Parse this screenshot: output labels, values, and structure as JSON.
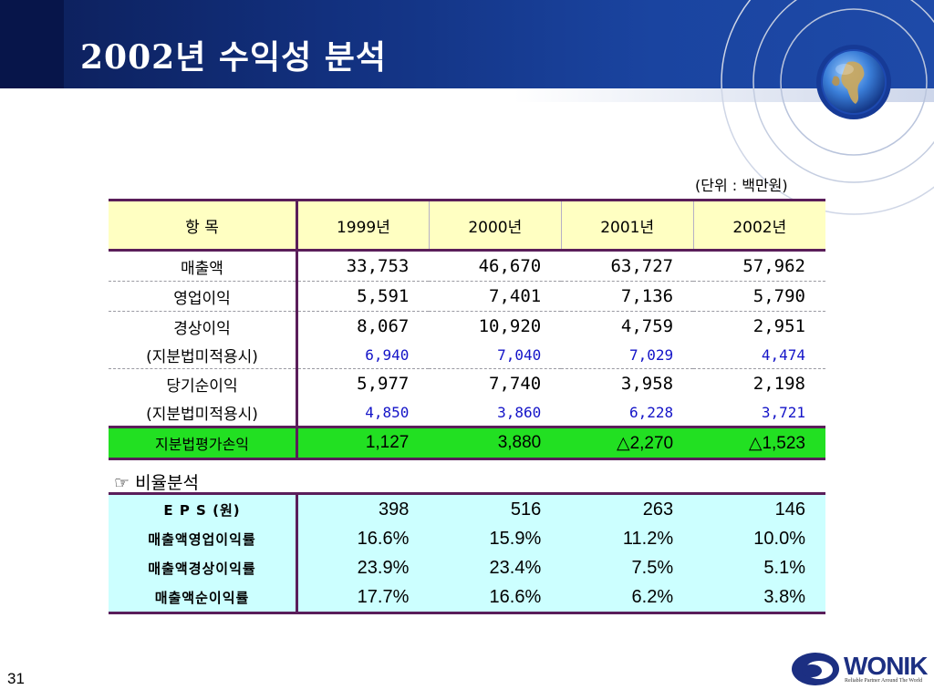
{
  "slide": {
    "title": "2002년 수익성 분석",
    "unit": "(단위 : 백만원)",
    "page_number": "31"
  },
  "table": {
    "header": [
      "항      목",
      "1999년",
      "2000년",
      "2001년",
      "2002년"
    ],
    "rows": [
      {
        "label": "매출액",
        "values": [
          "33,753",
          "46,670",
          "63,727",
          "57,962"
        ]
      },
      {
        "label": "영업이익",
        "values": [
          "5,591",
          "7,401",
          "7,136",
          "5,790"
        ]
      },
      {
        "label": "경상이익",
        "values": [
          "8,067",
          "10,920",
          "4,759",
          "2,951"
        ]
      },
      {
        "label": "(지분법미적용시)",
        "values": [
          "6,940",
          "7,040",
          "7,029",
          "4,474"
        ]
      },
      {
        "label": "당기순이익",
        "values": [
          "5,977",
          "7,740",
          "3,958",
          "2,198"
        ]
      },
      {
        "label": "(지분법미적용시)",
        "values": [
          "4,850",
          "3,860",
          "6,228",
          "3,721"
        ]
      },
      {
        "label": "지분법평가손익",
        "values": [
          "1,127",
          "3,880",
          "△2,270",
          "△1,523"
        ]
      }
    ]
  },
  "ratio_section": {
    "label": "☞ 비율분석",
    "rows": [
      {
        "label": "E P S (원)",
        "values": [
          "398",
          "516",
          "263",
          "146"
        ]
      },
      {
        "label": "매출액영업이익률",
        "values": [
          "16.6%",
          "15.9%",
          "11.2%",
          "10.0%"
        ]
      },
      {
        "label": "매출액경상이익률",
        "values": [
          "23.9%",
          "23.4%",
          "7.5%",
          "5.1%"
        ]
      },
      {
        "label": "매출액순이익률",
        "values": [
          "17.7%",
          "16.6%",
          "6.2%",
          "3.8%"
        ]
      }
    ]
  },
  "logo": {
    "name": "WONIK",
    "tagline": "Reliable Partner Around The World"
  },
  "colors": {
    "header_band": "#12307e",
    "table_header_bg": "#ffffc2",
    "highlight_row_bg": "#22e022",
    "ratio_bg": "#ccffff",
    "sub_value_text": "#1414c8",
    "border": "#5a1e5a"
  }
}
